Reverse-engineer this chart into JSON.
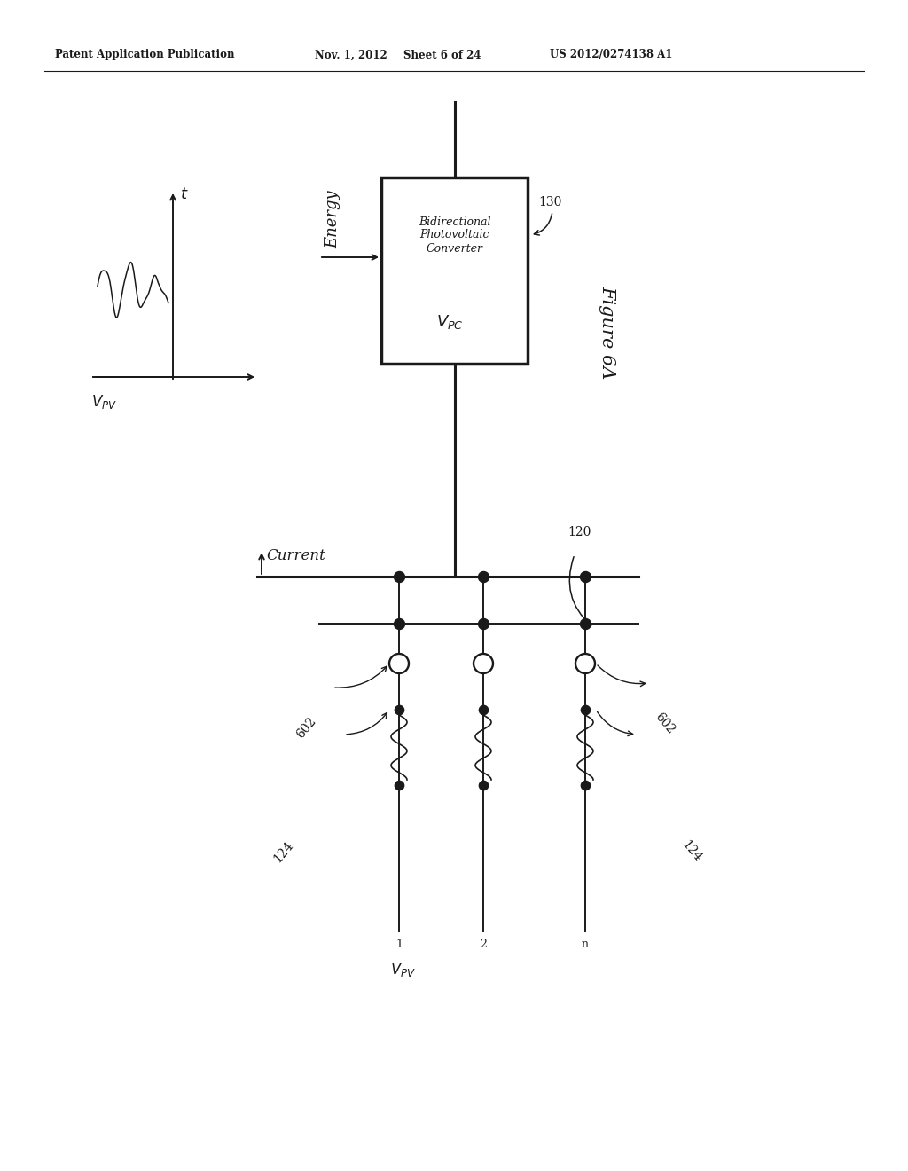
{
  "bg_color": "#ffffff",
  "header_text": "Patent Application Publication",
  "header_date": "Nov. 1, 2012",
  "header_sheet": "Sheet 6 of 24",
  "header_patent": "US 2012/0274138 A1",
  "figure_label": "Figure 6A",
  "box_label": "Bidirectional\nPhotovoltaic\nConverter",
  "box_vpc_label": "V_{PC}",
  "box_ref": "130",
  "bus_ref": "120",
  "current_label": "Current",
  "vpv_label_bottom": "V_{PV}",
  "energy_label": "Energy",
  "vpv_label_top": "V_{PV}",
  "t_label": "t",
  "ref_602": "602",
  "ref_124": "124",
  "col1_label": "1",
  "col2_label": "2",
  "coln_label": "n"
}
